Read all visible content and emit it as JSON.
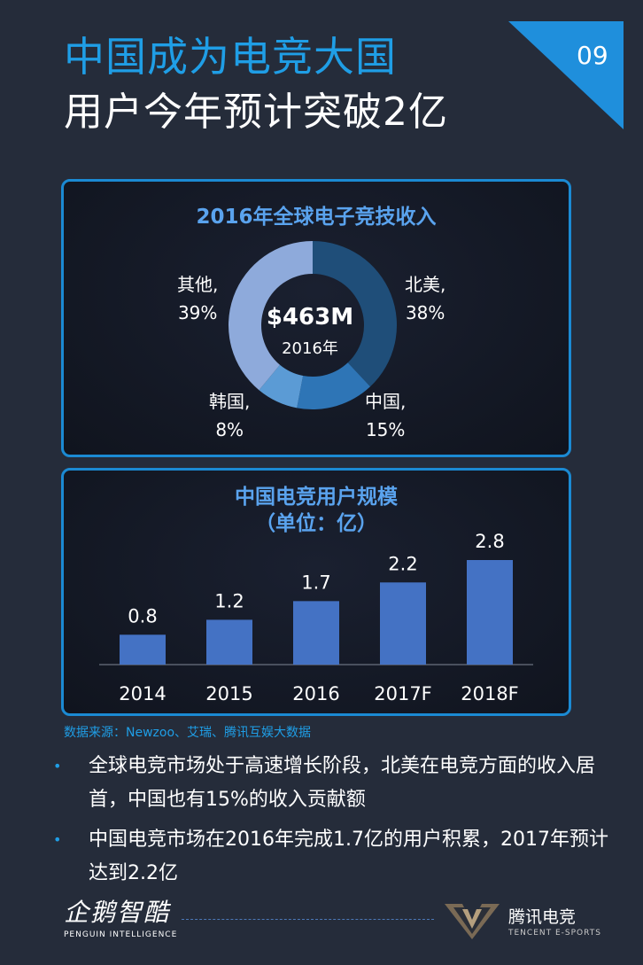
{
  "header": {
    "title_line1": "中国成为电竞大国",
    "title_line2": "用户今年预计突破2亿",
    "page_number": "09"
  },
  "colors": {
    "accent": "#1f9ee6",
    "panel_border": "#1b8ad3",
    "panel_title": "#5aa3ee",
    "bar": "#4472c4"
  },
  "revenue_panel": {
    "title": "2016年全球电子竞技收入",
    "center_value": "$463M",
    "center_sub": "2016年",
    "labels": [
      {
        "name": "北美,",
        "pct": "38%"
      },
      {
        "name": "中国,",
        "pct": "15%"
      },
      {
        "name": "韩国,",
        "pct": "8%"
      },
      {
        "name": "其他,",
        "pct": "39%"
      }
    ]
  },
  "users_panel": {
    "title_line1": "中国电竞用户规模",
    "title_line2": "（单位：亿）"
  },
  "chart_data": [
    {
      "type": "pie",
      "title": "2016年全球电子竞技收入",
      "categories": [
        "北美",
        "中国",
        "韩国",
        "其他"
      ],
      "values": [
        38,
        15,
        8,
        39
      ],
      "colors": [
        "#1f4e79",
        "#2e75b6",
        "#5b9bd5",
        "#8eaadb"
      ]
    },
    {
      "type": "bar",
      "title": "中国电竞用户规模（单位：亿）",
      "categories": [
        "2014",
        "2015",
        "2016",
        "2017F",
        "2018F"
      ],
      "values": [
        0.8,
        1.2,
        1.7,
        2.2,
        2.8
      ],
      "value_labels": [
        "0.8",
        "1.2",
        "1.7",
        "2.2",
        "2.8"
      ],
      "ylim": [
        0,
        2.8
      ]
    }
  ],
  "source": "数据来源：Newzoo、艾瑞、腾讯互娱大数据",
  "bullets": [
    "全球电竞市场处于高速增长阶段，北美在电竞方面的收入居首，中国也有15%的收入贡献额",
    "中国电竞市场在2016年完成1.7亿的用户积累，2017年预计达到2.2亿"
  ],
  "bullet_glyph": "•",
  "footer": {
    "left_logo_cn": "企鹅智酷",
    "left_logo_en": "PENGUIN INTELLIGENCE",
    "right_logo_cn": "腾讯电竞",
    "right_logo_en": "TENCENT E-SPORTS"
  }
}
